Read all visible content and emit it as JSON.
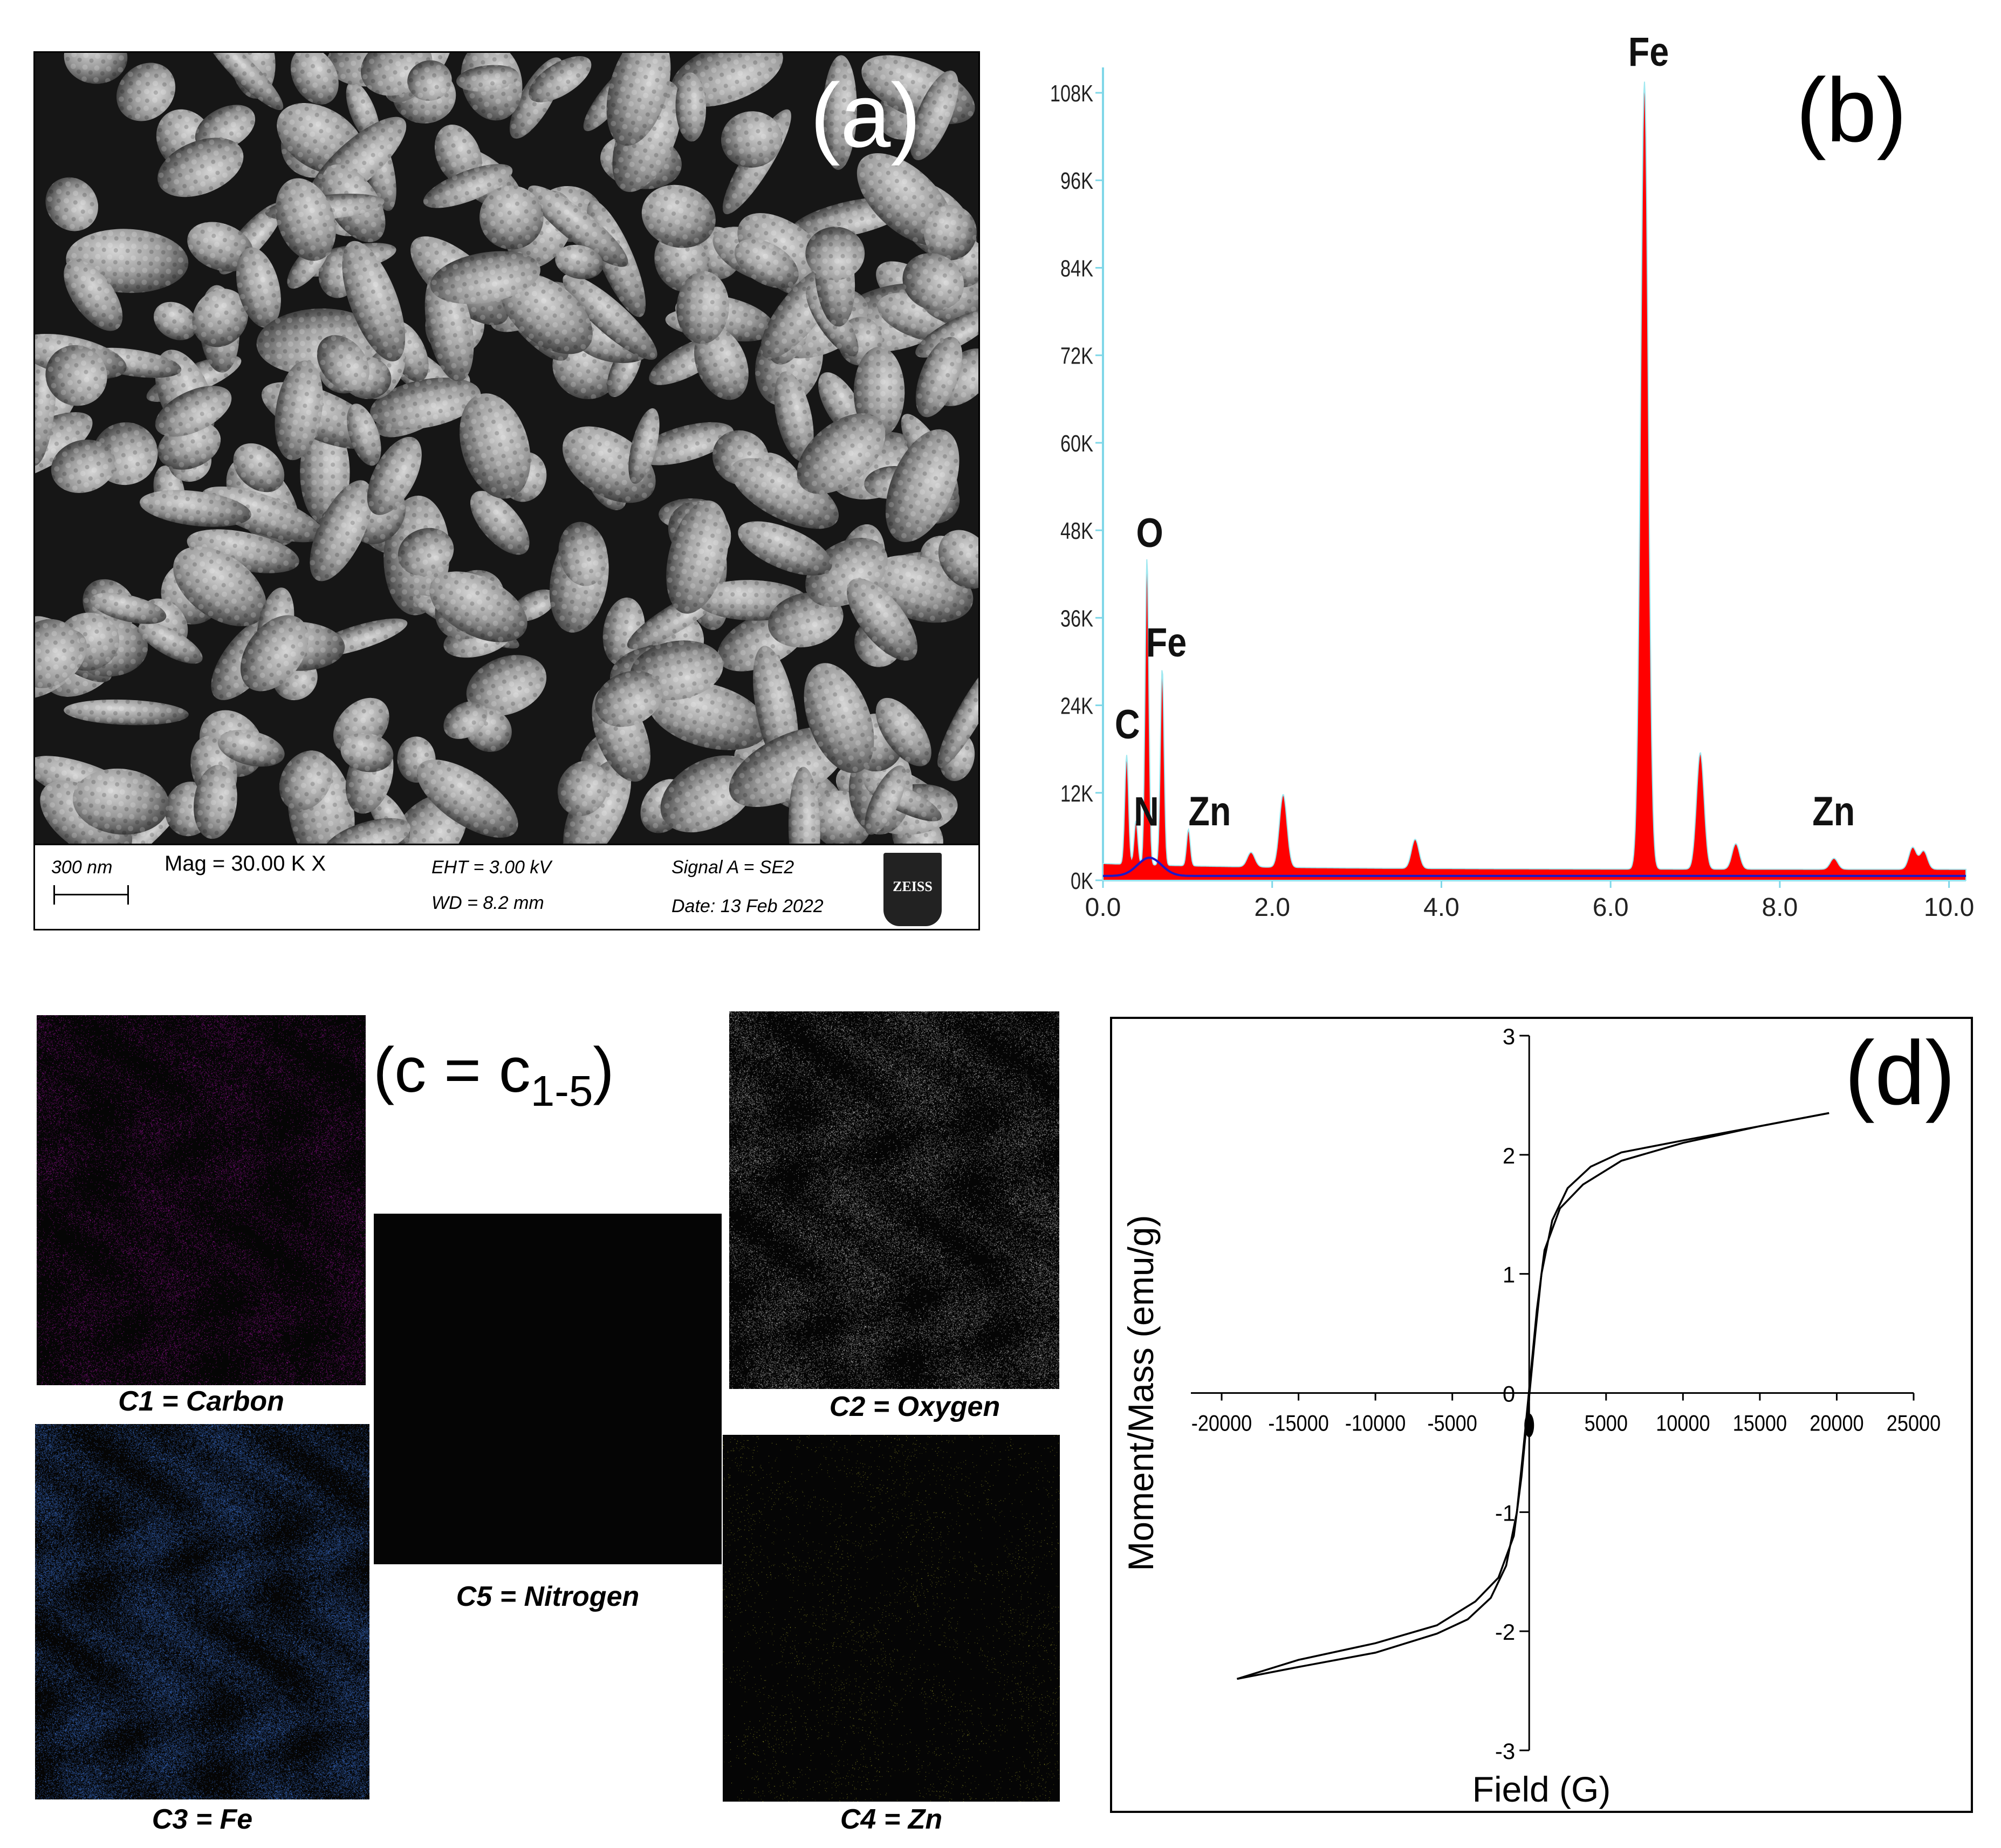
{
  "panels": {
    "a": {
      "letter": "(a)",
      "info": {
        "scale_bar": "300 nm",
        "mag": "Mag =   30.00 K X",
        "eht": "EHT =  3.00 kV",
        "wd": "WD =  8.2 mm",
        "signal": "Signal A = SE2",
        "date": "Date: 13 Feb 2022",
        "logo": "ZEISS"
      }
    },
    "b": {
      "letter": "(b)"
    },
    "c": {
      "letter_main": "(c = c",
      "letter_sub": "1-5",
      "letter_close": ")",
      "maps": [
        {
          "label": "C1 = Carbon",
          "color": "#b012b0"
        },
        {
          "label": "C2 = Oxygen",
          "color": "#dcdcdc"
        },
        {
          "label": "C3 = Fe",
          "color": "#3d74d6"
        },
        {
          "label": "C4 = Zn",
          "color": "#c8c830"
        },
        {
          "label": "C5 = Nitrogen",
          "color": "#000000"
        }
      ]
    },
    "d": {
      "letter": "(d)"
    }
  },
  "chart_data": [
    {
      "type": "area",
      "panel": "b",
      "title": "",
      "xlabel": "",
      "ylabel": "",
      "xlim": [
        0.0,
        10.2
      ],
      "ylim": [
        0,
        110000
      ],
      "x_ticks": [
        "0.0",
        "2.0",
        "4.0",
        "6.0",
        "8.0",
        "10.0"
      ],
      "y_ticks": [
        "0K",
        "12K",
        "24K",
        "36K",
        "48K",
        "60K",
        "72K",
        "84K",
        "96K",
        "108K"
      ],
      "peaks": [
        {
          "x": 0.28,
          "y": 15000,
          "label": "C"
        },
        {
          "x": 0.39,
          "y": 6000,
          "label": "N"
        },
        {
          "x": 0.52,
          "y": 42000,
          "label": "O"
        },
        {
          "x": 0.7,
          "y": 27000,
          "label": "Fe"
        },
        {
          "x": 1.01,
          "y": 5000,
          "label": "Zn"
        },
        {
          "x": 1.75,
          "y": 2000,
          "label": ""
        },
        {
          "x": 2.13,
          "y": 10000,
          "label": ""
        },
        {
          "x": 3.69,
          "y": 4000,
          "label": ""
        },
        {
          "x": 6.4,
          "y": 108000,
          "label": "Fe"
        },
        {
          "x": 7.06,
          "y": 16000,
          "label": ""
        },
        {
          "x": 7.48,
          "y": 3500,
          "label": ""
        },
        {
          "x": 8.64,
          "y": 1500,
          "label": "Zn"
        },
        {
          "x": 9.57,
          "y": 3000,
          "label": ""
        },
        {
          "x": 9.7,
          "y": 2500,
          "label": ""
        }
      ],
      "colors": {
        "spectrum_fill": "#ff0000",
        "overlay_line": "#1c18c8",
        "axis": "#7fd7e8"
      }
    },
    {
      "type": "line",
      "panel": "d",
      "title": "",
      "xlabel": "Field (G)",
      "ylabel": "Moment/Mass (emu/g)",
      "xlim": [
        -22000,
        25000
      ],
      "ylim": [
        -3,
        3
      ],
      "x_ticks": [
        "-20000",
        "-15000",
        "-10000",
        "-5000",
        "0",
        "5000",
        "10000",
        "15000",
        "20000",
        "25000"
      ],
      "y_ticks": [
        "-3",
        "-2",
        "-1",
        "0",
        "1",
        "2",
        "3"
      ],
      "series": [
        {
          "values": [
            [
              -19000,
              -2.4
            ],
            [
              -15000,
              -2.3
            ],
            [
              -10000,
              -2.18
            ],
            [
              -6000,
              -2.02
            ],
            [
              -4000,
              -1.9
            ],
            [
              -2500,
              -1.72
            ],
            [
              -1500,
              -1.45
            ],
            [
              -800,
              -1.0
            ],
            [
              -400,
              -0.5
            ],
            [
              0,
              0.03
            ],
            [
              500,
              0.7
            ],
            [
              1000,
              1.2
            ],
            [
              2000,
              1.55
            ],
            [
              3500,
              1.75
            ],
            [
              6000,
              1.95
            ],
            [
              10000,
              2.1
            ],
            [
              15000,
              2.24
            ],
            [
              19500,
              2.35
            ]
          ]
        },
        {
          "values": [
            [
              19500,
              2.35
            ],
            [
              15000,
              2.24
            ],
            [
              10000,
              2.12
            ],
            [
              6000,
              2.02
            ],
            [
              4000,
              1.9
            ],
            [
              2500,
              1.72
            ],
            [
              1500,
              1.45
            ],
            [
              800,
              1.0
            ],
            [
              400,
              0.5
            ],
            [
              0,
              -0.03
            ],
            [
              -500,
              -0.7
            ],
            [
              -1000,
              -1.2
            ],
            [
              -2000,
              -1.55
            ],
            [
              -3500,
              -1.75
            ],
            [
              -6000,
              -1.95
            ],
            [
              -10000,
              -2.1
            ],
            [
              -15000,
              -2.24
            ],
            [
              -19000,
              -2.4
            ]
          ]
        }
      ]
    }
  ]
}
